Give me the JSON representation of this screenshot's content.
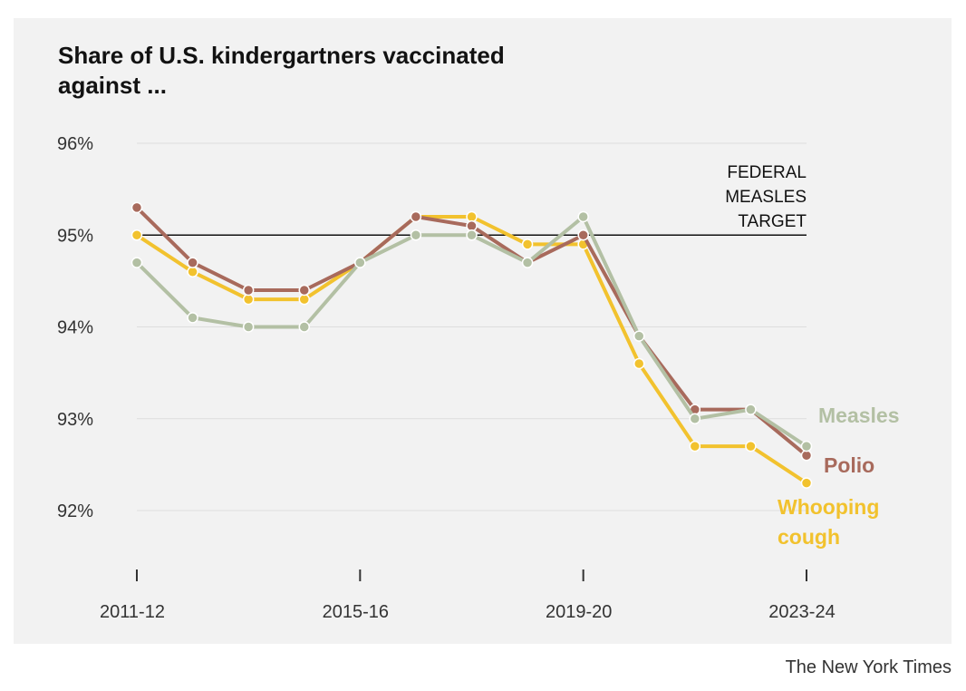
{
  "chart_data": {
    "type": "line",
    "title": "Share of U.S. kindergartners vaccinated against ...",
    "xlabel": "",
    "ylabel": "",
    "x": [
      "2011-12",
      "2012-13",
      "2013-14",
      "2014-15",
      "2015-16",
      "2016-17",
      "2017-18",
      "2018-19",
      "2019-20",
      "2020-21",
      "2021-22",
      "2022-23",
      "2023-24"
    ],
    "x_tick_labels": [
      "2011-12",
      "2015-16",
      "2019-20",
      "2023-24"
    ],
    "y_ticks": [
      92,
      93,
      94,
      95,
      96
    ],
    "y_tick_labels": [
      "92%",
      "93%",
      "94%",
      "95%",
      "96%"
    ],
    "ylim": [
      91.5,
      96
    ],
    "grid": true,
    "reference_line": {
      "value": 95,
      "label_lines": [
        "FEDERAL",
        "MEASLES",
        "TARGET"
      ],
      "color": "#121212"
    },
    "series": [
      {
        "name": "Measles",
        "label_lines": [
          "Measles"
        ],
        "color": "#b3c0a4",
        "values": [
          94.7,
          94.1,
          94.0,
          94.0,
          94.7,
          95.0,
          95.0,
          94.7,
          95.2,
          93.9,
          93.0,
          93.1,
          92.7
        ]
      },
      {
        "name": "Polio",
        "label_lines": [
          "Polio"
        ],
        "color": "#a86a5c",
        "values": [
          95.3,
          94.7,
          94.4,
          94.4,
          94.7,
          95.2,
          95.1,
          94.7,
          95.0,
          93.9,
          93.1,
          93.1,
          92.6
        ]
      },
      {
        "name": "Whooping cough",
        "label_lines": [
          "Whooping",
          "cough"
        ],
        "color": "#f2c22e",
        "values": [
          95.0,
          94.6,
          94.3,
          94.3,
          94.7,
          95.2,
          95.2,
          94.9,
          94.9,
          93.6,
          92.7,
          92.7,
          92.3
        ]
      }
    ]
  },
  "credit": "The New York Times",
  "colors": {
    "background": "#f2f2f2",
    "gridline": "#dddddd",
    "axis_text": "#333333"
  }
}
